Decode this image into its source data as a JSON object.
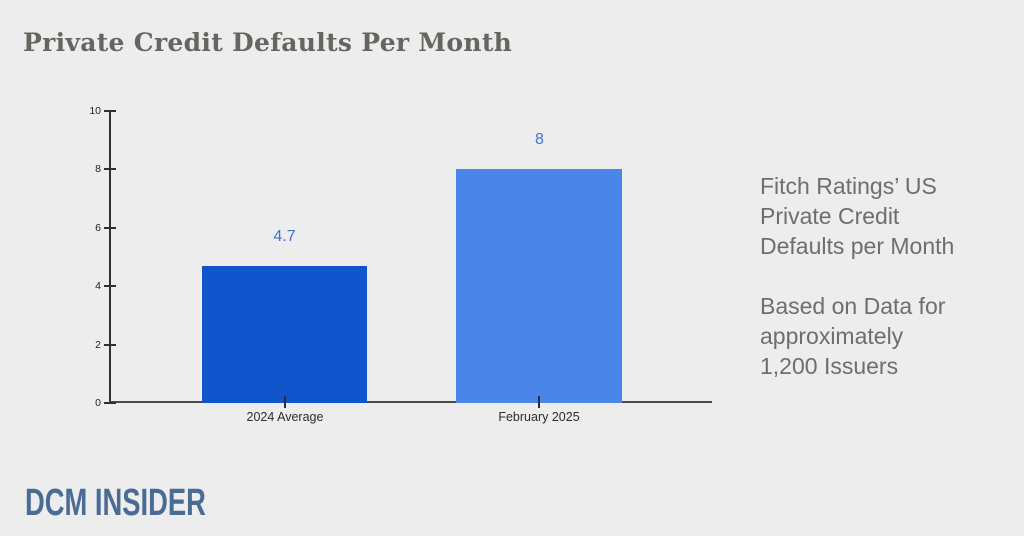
{
  "page": {
    "title": "Private Credit Defaults Per Month",
    "background_color": "#ededee"
  },
  "chart_data": {
    "type": "bar",
    "title": "Private Credit Defaults Per Month",
    "categories": [
      "2024 Average",
      "February 2025"
    ],
    "values": [
      4.7,
      8
    ],
    "value_labels": [
      "4.7",
      "8"
    ],
    "bar_colors": [
      "#1155cc",
      "#4a86e8"
    ],
    "value_label_color": "#4274cb",
    "xlabel": "",
    "ylabel": "",
    "ylim": [
      0,
      10
    ],
    "yticks": [
      0,
      2,
      4,
      6,
      8,
      10
    ],
    "grid": false,
    "legend": false
  },
  "annotation": {
    "para1": [
      "Fitch Ratings’ US",
      "Private Credit",
      "Defaults per Month"
    ],
    "para2": [
      "Based on Data for",
      "approximately",
      "1,200 Issuers"
    ]
  },
  "footer": {
    "logo": "DCM INSIDER"
  }
}
